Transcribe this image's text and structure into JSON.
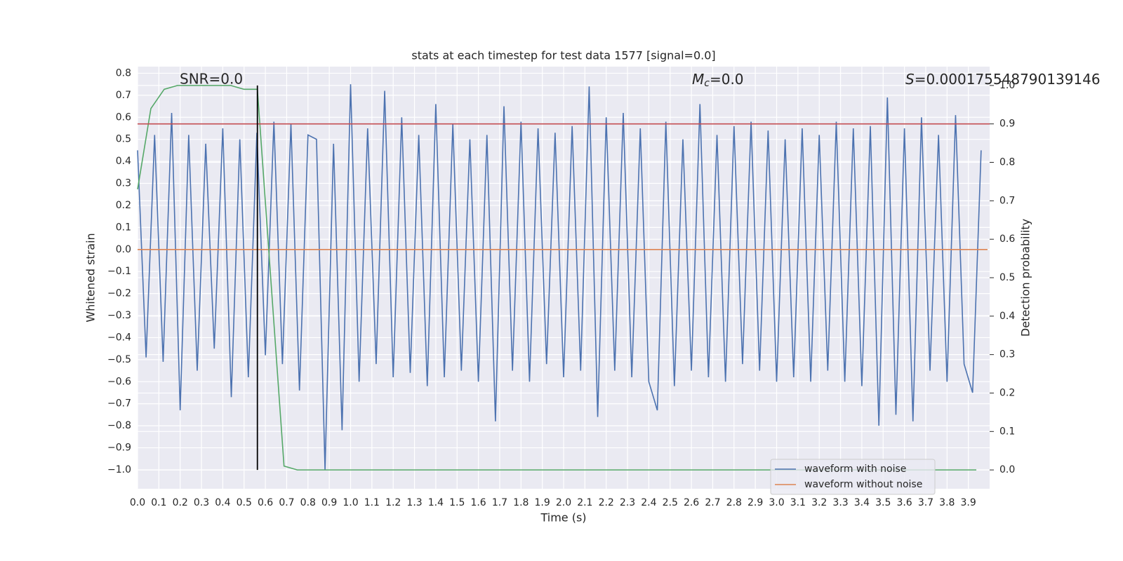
{
  "chart_data": {
    "type": "line",
    "title": "stats at each timestep for test data 1577 [signal=0.0]",
    "xlabel": "Time (s)",
    "ylabel": "Whitened strain",
    "y2label": "Detection probability",
    "xlim": [
      0,
      4.0
    ],
    "ylim": [
      -1.086,
      0.83
    ],
    "y2lim": [
      -0.049,
      1.049
    ],
    "xticks": [
      {
        "value": 0,
        "label": "0.0"
      },
      0.1,
      0.2,
      0.3,
      0.4,
      0.5,
      0.6,
      0.7,
      0.8,
      0.9,
      {
        "value": 1,
        "label": "1.0"
      },
      1.1,
      1.2,
      1.3,
      1.4,
      1.5,
      1.6,
      1.7,
      1.8,
      1.9,
      {
        "value": 2,
        "label": "2.0"
      },
      2.1,
      2.2,
      2.3,
      2.4,
      2.5,
      2.6,
      2.7,
      2.8,
      2.9,
      {
        "value": 3,
        "label": "3.0"
      },
      3.1,
      3.2,
      3.3,
      3.4,
      3.5,
      3.6,
      3.7,
      3.8,
      3.9
    ],
    "yticks": [
      {
        "value": -1,
        "label": "−1.0"
      },
      {
        "value": -0.9,
        "label": "−0.9"
      },
      {
        "value": -0.8,
        "label": "−0.8"
      },
      {
        "value": -0.7,
        "label": "−0.7"
      },
      {
        "value": -0.6,
        "label": "−0.6"
      },
      {
        "value": -0.5,
        "label": "−0.5"
      },
      {
        "value": -0.4,
        "label": "−0.4"
      },
      {
        "value": -0.3,
        "label": "−0.3"
      },
      {
        "value": -0.2,
        "label": "−0.2"
      },
      {
        "value": -0.1,
        "label": "−0.1"
      },
      {
        "value": 0,
        "label": "0.0"
      },
      0.1,
      0.2,
      0.3,
      0.4,
      0.5,
      0.6,
      0.7,
      0.8
    ],
    "y2ticks": [
      {
        "value": 0,
        "label": "0.0"
      },
      0.1,
      0.2,
      0.3,
      0.4,
      0.5,
      0.6,
      0.7,
      0.8,
      0.9,
      {
        "value": 1,
        "label": "1.0"
      }
    ],
    "grid": true,
    "legend": "lower right",
    "series": [
      {
        "name": "waveform with noise",
        "color": "#4c72b0",
        "axis": "y",
        "x": [
          0,
          0.04,
          0.08,
          0.12,
          0.16,
          0.2,
          0.24,
          0.28,
          0.32,
          0.36,
          0.4,
          0.44,
          0.48,
          0.52,
          0.56,
          0.6,
          0.64,
          0.68,
          0.72,
          0.76,
          0.8,
          0.84,
          0.88,
          0.92,
          0.96,
          1.0,
          1.04,
          1.08,
          1.12,
          1.16,
          1.2,
          1.24,
          1.28,
          1.32,
          1.36,
          1.4,
          1.44,
          1.48,
          1.52,
          1.56,
          1.6,
          1.64,
          1.68,
          1.72,
          1.76,
          1.8,
          1.84,
          1.88,
          1.92,
          1.96,
          2.0,
          2.04,
          2.08,
          2.12,
          2.16,
          2.2,
          2.24,
          2.28,
          2.32,
          2.36,
          2.4,
          2.44,
          2.48,
          2.52,
          2.56,
          2.6,
          2.64,
          2.68,
          2.72,
          2.76,
          2.8,
          2.84,
          2.88,
          2.92,
          2.96,
          3.0,
          3.04,
          3.08,
          3.12,
          3.16,
          3.2,
          3.24,
          3.28,
          3.32,
          3.36,
          3.4,
          3.44,
          3.48,
          3.52,
          3.56,
          3.6,
          3.64,
          3.68,
          3.72,
          3.76,
          3.8,
          3.84,
          3.88,
          3.92,
          3.96
        ],
        "values": [
          0.45,
          -0.49,
          0.52,
          -0.51,
          0.62,
          -0.73,
          0.52,
          -0.55,
          0.48,
          -0.45,
          0.55,
          -0.67,
          0.5,
          -0.58,
          0.53,
          -0.48,
          0.58,
          -0.52,
          0.57,
          -0.64,
          0.52,
          0.5,
          -1.0,
          0.48,
          -0.82,
          0.75,
          -0.6,
          0.55,
          -0.52,
          0.72,
          -0.58,
          0.6,
          -0.56,
          0.52,
          -0.62,
          0.66,
          -0.58,
          0.57,
          -0.55,
          0.5,
          -0.6,
          0.52,
          -0.78,
          0.65,
          -0.55,
          0.58,
          -0.6,
          0.55,
          -0.52,
          0.53,
          -0.58,
          0.56,
          -0.55,
          0.74,
          -0.76,
          0.6,
          -0.55,
          0.62,
          -0.58,
          0.55,
          -0.6,
          -0.73,
          0.58,
          -0.62,
          0.5,
          -0.55,
          0.66,
          -0.58,
          0.52,
          -0.6,
          0.56,
          -0.52,
          0.58,
          -0.55,
          0.54,
          -0.6,
          0.5,
          -0.58,
          0.55,
          -0.6,
          0.52,
          -0.55,
          0.58,
          -0.6,
          0.55,
          -0.62,
          0.56,
          -0.8,
          0.69,
          -0.75,
          0.55,
          -0.78,
          0.6,
          -0.55,
          0.52,
          -0.6,
          0.61,
          -0.52,
          -0.65,
          0.45
        ]
      },
      {
        "name": "waveform without noise",
        "color": "#dd8452",
        "axis": "y",
        "x": [
          0,
          3.99
        ],
        "values": [
          0,
          0
        ]
      },
      {
        "color": "#55a868",
        "axis": "y2",
        "x": [
          0,
          0.0625,
          0.125,
          0.1875,
          0.25,
          0.3125,
          0.375,
          0.4375,
          0.5,
          0.5625,
          0.625,
          0.6875,
          0.75,
          0.8125,
          3.9375
        ],
        "values": [
          0.73,
          0.94,
          0.99,
          1.0,
          1.0,
          1.0,
          1.0,
          1.0,
          0.99,
          0.99,
          0.5,
          0.01,
          0.0,
          0.0,
          0.0
        ]
      }
    ],
    "hlines": [
      {
        "value": 0.9,
        "axis": "y2",
        "color": "#c44e52"
      }
    ],
    "vlines": [
      {
        "x": 0.5625,
        "ymin": 0,
        "ymax": 1,
        "axis": "y2",
        "color": "#000000"
      }
    ],
    "annotations": {
      "snr": "SNR=0.0",
      "mc": {
        "symbol": "M",
        "sub": "c",
        "text": "=0.0"
      },
      "s": {
        "symbol": "S",
        "text": "=0.000175548790139146"
      }
    }
  }
}
